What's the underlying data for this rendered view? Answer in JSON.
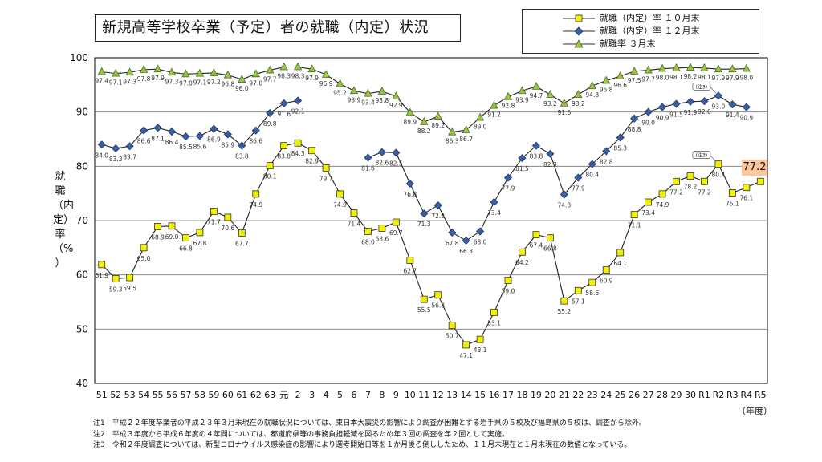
{
  "chart_data": {
    "type": "line",
    "title": "新規高等学校卒業（予定）者の就職（内定）状況",
    "ylabel_chars": [
      "就",
      "職",
      "（内",
      "定）",
      "率",
      "（%",
      "）"
    ],
    "xunit": "（年度）",
    "ylim": [
      40,
      100
    ],
    "yticks": [
      "40",
      "50",
      "60",
      "70",
      "80",
      "90",
      "100"
    ],
    "categories": [
      "51",
      "52",
      "53",
      "54",
      "55",
      "56",
      "57",
      "58",
      "59",
      "60",
      "61",
      "62",
      "63",
      "元",
      "2",
      "3",
      "4",
      "5",
      "6",
      "7",
      "8",
      "9",
      "10",
      "11",
      "12",
      "13",
      "14",
      "15",
      "16",
      "17",
      "18",
      "19",
      "20",
      "21",
      "22",
      "23",
      "24",
      "25",
      "26",
      "27",
      "28",
      "29",
      "30",
      "R1",
      "R2",
      "R3",
      "R4",
      "R5"
    ],
    "grid": true,
    "legend_position": "top-right",
    "series": [
      {
        "name": "就職（内定）率 １０月末",
        "marker": "square",
        "color": "#f2f200",
        "values": [
          61.9,
          59.3,
          59.5,
          65.0,
          68.9,
          69.0,
          66.8,
          67.8,
          71.7,
          70.6,
          67.7,
          74.9,
          80.1,
          83.8,
          84.3,
          82.9,
          79.7,
          74.9,
          71.4,
          68.0,
          68.6,
          69.7,
          62.7,
          55.5,
          56.3,
          50.7,
          47.1,
          48.1,
          53.1,
          59.0,
          64.2,
          67.4,
          66.8,
          55.2,
          57.1,
          58.6,
          60.9,
          64.1,
          71.1,
          73.4,
          74.9,
          77.2,
          78.2,
          77.2,
          80.4,
          75.1,
          76.1,
          77.2
        ],
        "breaks_before": []
      },
      {
        "name": "就職（内定）率 １２月末",
        "marker": "diamond",
        "color": "#3d5e9e",
        "values": [
          84.0,
          83.3,
          83.7,
          86.6,
          87.1,
          86.4,
          85.5,
          85.6,
          86.9,
          85.9,
          83.8,
          86.6,
          89.8,
          91.6,
          92.1,
          null,
          null,
          null,
          null,
          81.6,
          82.6,
          82.5,
          76.8,
          71.3,
          72.8,
          67.8,
          66.3,
          68.0,
          73.4,
          77.9,
          81.5,
          83.8,
          82.3,
          74.8,
          77.9,
          80.4,
          82.8,
          85.3,
          88.8,
          90.0,
          90.9,
          91.5,
          91.9,
          92.0,
          93.0,
          91.4,
          90.9,
          null
        ]
      },
      {
        "name": "就職率 ３月末",
        "marker": "triangle",
        "color": "#9bc24b",
        "values": [
          97.4,
          97.1,
          97.3,
          97.8,
          97.9,
          97.3,
          97.0,
          97.1,
          97.2,
          96.8,
          96.0,
          97.0,
          97.7,
          98.3,
          98.3,
          97.9,
          96.9,
          95.2,
          93.9,
          93.4,
          93.8,
          92.9,
          89.9,
          88.2,
          89.2,
          86.3,
          86.7,
          89.0,
          91.2,
          92.8,
          93.9,
          94.7,
          93.2,
          91.6,
          93.2,
          94.8,
          95.8,
          96.6,
          97.5,
          97.7,
          98.0,
          98.1,
          98.2,
          98.1,
          97.9,
          97.9,
          98.0,
          null
        ]
      }
    ],
    "annotations": [
      {
        "text": "(注3)",
        "series": 1,
        "category": "R2"
      },
      {
        "text": "(注3)",
        "series": 0,
        "category": "R2"
      }
    ],
    "highlight": {
      "text": "77.2",
      "series": 0,
      "category": "R5"
    }
  },
  "notes": [
    "注1　平成２２年度卒業者の平成２３年３月末現在の就職状況については、東日本大震災の影響により調査が困難とする岩手県の５校及び福島県の５校は、調査から除外。",
    "注2　平成３年度から平成６年度の４年間については、都道府県等の事務負担軽減を図るため年３回の調査を年２回として実施。",
    "注3　令和２年度調査については、新型コロナウイルス感染症の影響により選考開始日等を１か月後ろ倒ししたため、１１月末現在と１月末現在の数値となっている。"
  ]
}
